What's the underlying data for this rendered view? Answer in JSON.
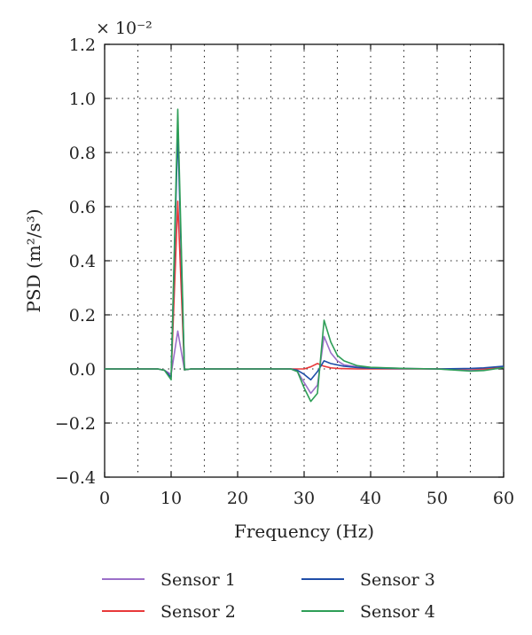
{
  "chart_data": {
    "type": "line",
    "xlabel": "Frequency (Hz)",
    "ylabel": "PSD (m²/s³)",
    "exponent_label": "× 10⁻²",
    "xlim": [
      0,
      60
    ],
    "ylim": [
      -0.4,
      1.2
    ],
    "xticks": [
      0,
      10,
      20,
      30,
      40,
      50,
      60
    ],
    "yticks": [
      -0.4,
      -0.2,
      0.0,
      0.2,
      0.4,
      0.6,
      0.8,
      1.0,
      1.2
    ],
    "xtick_labels": [
      "0",
      "10",
      "20",
      "30",
      "40",
      "50",
      "60"
    ],
    "ytick_labels": [
      "−0.4",
      "−0.2",
      "0.0",
      "0.2",
      "0.4",
      "0.6",
      "0.8",
      "1.0",
      "1.2"
    ],
    "grid": "dotted",
    "legend_position": "bottom",
    "series": [
      {
        "name": "Sensor 1",
        "color": "#9b6fc9",
        "x": [
          0,
          8,
          9,
          10,
          11,
          12,
          13,
          20,
          28,
          29,
          30,
          31,
          32,
          33,
          34,
          35,
          36,
          38,
          40,
          45,
          50,
          55,
          57,
          60
        ],
        "y": [
          0,
          0,
          -0.005,
          -0.02,
          0.14,
          -0.003,
          0,
          0,
          0,
          -0.01,
          -0.05,
          -0.09,
          -0.06,
          0.12,
          0.06,
          0.03,
          0.015,
          0.008,
          0.005,
          0.002,
          0,
          -0.005,
          -0.003,
          0.005
        ]
      },
      {
        "name": "Sensor 2",
        "color": "#e8393a",
        "x": [
          0,
          8,
          9,
          10,
          11,
          12,
          13,
          20,
          28,
          29,
          30,
          31,
          32,
          33,
          34,
          35,
          36,
          38,
          40,
          45,
          50,
          55,
          57,
          60
        ],
        "y": [
          0,
          0,
          -0.005,
          -0.03,
          0.62,
          -0.003,
          0,
          0,
          0,
          0,
          0,
          0.008,
          0.02,
          0.01,
          0.004,
          0.002,
          0.001,
          0,
          0,
          0,
          0,
          0,
          0,
          0.005
        ]
      },
      {
        "name": "Sensor 3",
        "color": "#1f4ea8",
        "x": [
          0,
          8,
          9,
          10,
          11,
          12,
          13,
          20,
          28,
          29,
          30,
          31,
          32,
          33,
          34,
          35,
          36,
          38,
          40,
          45,
          50,
          55,
          57,
          60
        ],
        "y": [
          0,
          0,
          -0.005,
          -0.03,
          0.88,
          -0.003,
          0,
          0,
          0,
          -0.005,
          -0.02,
          -0.04,
          -0.01,
          0.03,
          0.02,
          0.015,
          0.01,
          0.005,
          0.003,
          0.001,
          0,
          0.002,
          0.004,
          0.01
        ]
      },
      {
        "name": "Sensor 4",
        "color": "#2e9e57",
        "x": [
          0,
          8,
          9,
          10,
          11,
          12,
          13,
          20,
          28,
          29,
          30,
          31,
          32,
          33,
          34,
          35,
          36,
          38,
          40,
          45,
          50,
          55,
          57,
          60
        ],
        "y": [
          0,
          0,
          -0.005,
          -0.04,
          0.96,
          -0.003,
          0,
          0,
          0,
          -0.01,
          -0.07,
          -0.12,
          -0.09,
          0.18,
          0.1,
          0.05,
          0.03,
          0.012,
          0.006,
          0.002,
          0,
          -0.008,
          -0.006,
          0.005
        ]
      }
    ]
  }
}
